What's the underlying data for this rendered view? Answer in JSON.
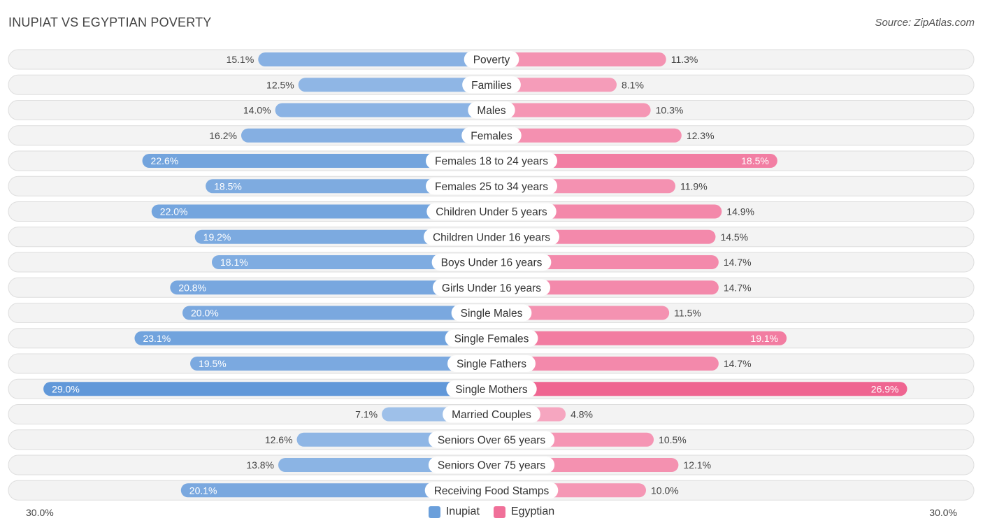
{
  "header": {
    "title": "INUPIAT VS EGYPTIAN POVERTY",
    "source": "Source: ZipAtlas.com"
  },
  "axis": {
    "left_label": "30.0%",
    "right_label": "30.0%"
  },
  "legend": [
    {
      "label": "Inupiat",
      "color": "#6a9fdb"
    },
    {
      "label": "Egyptian",
      "color": "#f07099"
    }
  ],
  "chart_data": {
    "type": "bar",
    "orientation": "diverging-horizontal",
    "title": "INUPIAT VS EGYPTIAN POVERTY",
    "xlim": [
      -30,
      30
    ],
    "unit": "%",
    "categories": [
      "Poverty",
      "Families",
      "Males",
      "Females",
      "Females 18 to 24 years",
      "Females 25 to 34 years",
      "Children Under 5 years",
      "Children Under 16 years",
      "Boys Under 16 years",
      "Girls Under 16 years",
      "Single Males",
      "Single Females",
      "Single Fathers",
      "Single Mothers",
      "Married Couples",
      "Seniors Over 65 years",
      "Seniors Over 75 years",
      "Receiving Food Stamps"
    ],
    "series": [
      {
        "name": "Inupiat",
        "values": [
          15.1,
          12.5,
          14.0,
          16.2,
          22.6,
          18.5,
          22.0,
          19.2,
          18.1,
          20.8,
          20.0,
          23.1,
          19.5,
          29.0,
          7.1,
          12.6,
          13.8,
          20.1
        ],
        "labels": [
          "15.1%",
          "12.5%",
          "14.0%",
          "16.2%",
          "22.6%",
          "18.5%",
          "22.0%",
          "19.2%",
          "18.1%",
          "20.8%",
          "20.0%",
          "23.1%",
          "19.5%",
          "29.0%",
          "7.1%",
          "12.6%",
          "13.8%",
          "20.1%"
        ]
      },
      {
        "name": "Egyptian",
        "values": [
          11.3,
          8.1,
          10.3,
          12.3,
          18.5,
          11.9,
          14.9,
          14.5,
          14.7,
          14.7,
          11.5,
          19.1,
          14.7,
          26.9,
          4.8,
          10.5,
          12.1,
          10.0
        ],
        "labels": [
          "11.3%",
          "8.1%",
          "10.3%",
          "12.3%",
          "18.5%",
          "11.9%",
          "14.9%",
          "14.5%",
          "14.7%",
          "14.7%",
          "11.5%",
          "19.1%",
          "14.7%",
          "26.9%",
          "4.8%",
          "10.5%",
          "12.1%",
          "10.0%"
        ]
      }
    ]
  }
}
